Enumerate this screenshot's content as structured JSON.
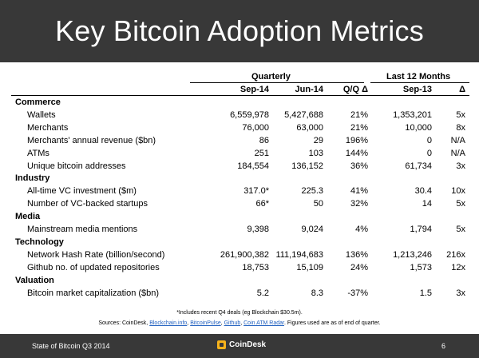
{
  "title": "Key Bitcoin Adoption Metrics",
  "headers": {
    "group_quarterly": "Quarterly",
    "group_ltm": "Last 12 Months",
    "col1": "Sep-14",
    "col2": "Jun-14",
    "col3": "Q/Q Δ",
    "col4": "Sep-13",
    "col5": "Δ"
  },
  "sections": [
    {
      "name": "Commerce",
      "rows": [
        {
          "label": "Wallets",
          "c1": "6,559,978",
          "c2": "5,427,688",
          "c3": "21%",
          "c4": "1,353,201",
          "c5": "5x"
        },
        {
          "label": "Merchants",
          "c1": "76,000",
          "c2": "63,000",
          "c3": "21%",
          "c4": "10,000",
          "c5": "8x"
        },
        {
          "label": "Merchants' annual revenue ($bn)",
          "c1": "86",
          "c2": "29",
          "c3": "196%",
          "c4": "0",
          "c5": "N/A"
        },
        {
          "label": "ATMs",
          "c1": "251",
          "c2": "103",
          "c3": "144%",
          "c4": "0",
          "c5": "N/A"
        },
        {
          "label": "Unique bitcoin addresses",
          "c1": "184,554",
          "c2": "136,152",
          "c3": "36%",
          "c4": "61,734",
          "c5": "3x"
        }
      ]
    },
    {
      "name": "Industry",
      "rows": [
        {
          "label": "All-time VC investment ($m)",
          "c1": "317.0*",
          "c2": "225.3",
          "c3": "41%",
          "c4": "30.4",
          "c5": "10x"
        },
        {
          "label": "Number of VC-backed startups",
          "c1": "66*",
          "c2": "50",
          "c3": "32%",
          "c4": "14",
          "c5": "5x"
        }
      ]
    },
    {
      "name": "Media",
      "rows": [
        {
          "label": "Mainstream media mentions",
          "c1": "9,398",
          "c2": "9,024",
          "c3": "4%",
          "c4": "1,794",
          "c5": "5x"
        }
      ]
    },
    {
      "name": "Technology",
      "rows": [
        {
          "label": "Network Hash Rate (billion/second)",
          "c1": "261,900,382",
          "c2": "111,194,683",
          "c3": "136%",
          "c4": "1,213,246",
          "c5": "216x"
        },
        {
          "label": "Github no. of updated repositories",
          "c1": "18,753",
          "c2": "15,109",
          "c3": "24%",
          "c4": "1,573",
          "c5": "12x"
        }
      ]
    },
    {
      "name": "Valuation",
      "rows": [
        {
          "label": "Bitcoin market capitalization ($bn)",
          "c1": "5.2",
          "c2": "8.3",
          "c3": "-37%",
          "c4": "1.5",
          "c5": "3x"
        }
      ]
    }
  ],
  "footnote": "*Includes recent Q4 deals (eg Blockchain $30.5m).",
  "sources": {
    "prefix": "Sources: CoinDesk, ",
    "links": [
      "Blockchain.info",
      "BitcoinPulse",
      "Github",
      "Coin ATM Radar"
    ],
    "suffix": ". Figures used are as of end of quarter."
  },
  "footer": {
    "left": "State of Bitcoin Q3 2014",
    "brand": "CoinDesk",
    "page": "6"
  }
}
